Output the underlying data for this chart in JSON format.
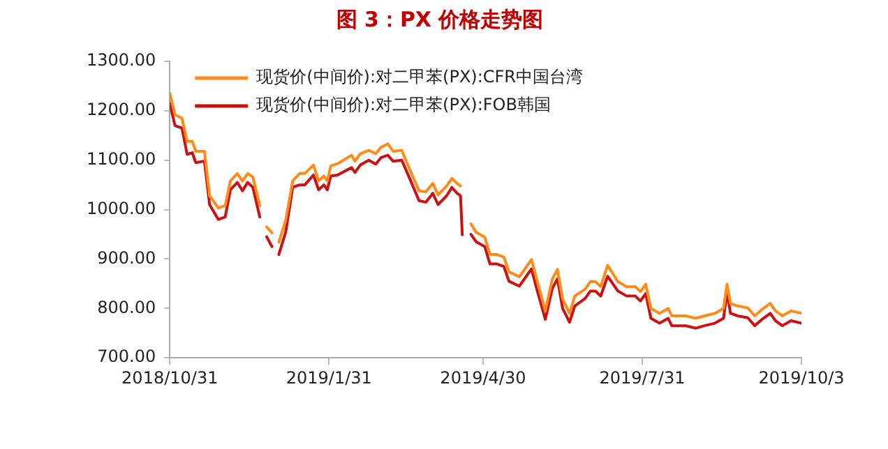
{
  "chart_data": {
    "type": "line",
    "title": "图 3：PX 价格走势图",
    "x": [
      "2018-10-31",
      "2018-11-03",
      "2018-11-07",
      "2018-11-10",
      "2018-11-13",
      "2018-11-15",
      "2018-11-20",
      "2018-11-23",
      "2018-11-28",
      "2018-12-02",
      "2018-12-05",
      "2018-12-09",
      "2018-12-12",
      "2018-12-15",
      "2018-12-18",
      "2018-12-22",
      "2018-12-24",
      "2018-12-26",
      "2018-12-29",
      "2018-12-31",
      "2019-01-02",
      "2019-01-06",
      "2019-01-10",
      "2019-01-14",
      "2019-01-17",
      "2019-01-22",
      "2019-01-25",
      "2019-01-28",
      "2019-01-30",
      "2019-02-01",
      "2019-02-05",
      "2019-02-13",
      "2019-02-15",
      "2019-02-18",
      "2019-02-23",
      "2019-02-27",
      "2019-03-02",
      "2019-03-06",
      "2019-03-09",
      "2019-03-14",
      "2019-03-19",
      "2019-03-24",
      "2019-03-28",
      "2019-04-01",
      "2019-04-04",
      "2019-04-09",
      "2019-04-12",
      "2019-04-15",
      "2019-04-17",
      "2019-04-18",
      "2019-04-19",
      "2019-04-23",
      "2019-04-26",
      "2019-05-01",
      "2019-05-04",
      "2019-05-08",
      "2019-05-12",
      "2019-05-15",
      "2019-05-21",
      "2019-05-25",
      "2019-05-28",
      "2019-05-31",
      "2019-06-05",
      "2019-06-09",
      "2019-06-12",
      "2019-06-15",
      "2019-06-19",
      "2019-06-22",
      "2019-06-28",
      "2019-07-01",
      "2019-07-04",
      "2019-07-07",
      "2019-07-11",
      "2019-07-17",
      "2019-07-22",
      "2019-07-27",
      "2019-07-30",
      "2019-08-02",
      "2019-08-05",
      "2019-08-10",
      "2019-08-15",
      "2019-08-17",
      "2019-08-25",
      "2019-08-31",
      "2019-09-05",
      "2019-09-11",
      "2019-09-16",
      "2019-09-18",
      "2019-09-20",
      "2019-09-24",
      "2019-09-30",
      "2019-10-04",
      "2019-10-09",
      "2019-10-13",
      "2019-10-16",
      "2019-10-20",
      "2019-10-25",
      "2019-10-31"
    ],
    "series": [
      {
        "name": "现货价(中间价):对二甲苯(PX):CFR中国台湾",
        "color": "#ff8c1a",
        "values": [
          1235,
          1192,
          1185,
          1138,
          1138,
          1118,
          1118,
          1028,
          1003,
          1008,
          1058,
          1073,
          1058,
          1073,
          1066,
          1008,
          null,
          965,
          953,
          null,
          934,
          979,
          1058,
          1073,
          1073,
          1090,
          1058,
          1068,
          1058,
          1088,
          1093,
          1110,
          1098,
          1113,
          1120,
          1113,
          1126,
          1133,
          1118,
          1120,
          1078,
          1038,
          1036,
          1053,
          1030,
          1048,
          1063,
          1053,
          1048,
          null,
          null,
          971,
          954,
          944,
          909,
          909,
          904,
          874,
          864,
          884,
          899,
          859,
          795,
          859,
          879,
          819,
          790,
          825,
          839,
          854,
          854,
          844,
          887,
          854,
          844,
          844,
          834,
          849,
          800,
          790,
          800,
          785,
          785,
          780,
          785,
          790,
          800,
          849,
          810,
          805,
          801,
          785,
          800,
          810,
          795,
          785,
          795,
          790
        ]
      },
      {
        "name": "现货价(中间价):对二甲苯(PX):FOB韩国",
        "color": "#cc1111",
        "values": [
          1215,
          1170,
          1165,
          1112,
          1115,
          1095,
          1098,
          1010,
          980,
          985,
          1040,
          1055,
          1038,
          1055,
          1045,
          985,
          null,
          945,
          925,
          null,
          909,
          955,
          1045,
          1050,
          1050,
          1070,
          1040,
          1050,
          1040,
          1068,
          1070,
          1085,
          1075,
          1090,
          1100,
          1092,
          1105,
          1110,
          1098,
          1100,
          1060,
          1018,
          1015,
          1033,
          1010,
          1028,
          1045,
          1033,
          1028,
          949,
          null,
          950,
          935,
          925,
          890,
          890,
          885,
          855,
          845,
          865,
          880,
          840,
          778,
          840,
          860,
          800,
          772,
          805,
          820,
          835,
          835,
          825,
          865,
          835,
          825,
          825,
          815,
          830,
          780,
          770,
          780,
          765,
          765,
          760,
          765,
          770,
          780,
          834,
          790,
          785,
          781,
          765,
          780,
          790,
          775,
          765,
          775,
          770
        ]
      }
    ],
    "xlim": [
      "2018-10-31",
      "2019-10-31"
    ],
    "xticks": [
      {
        "value": "2018-10-31",
        "label": "2018/10/31"
      },
      {
        "value": "2019-01-31",
        "label": "2019/1/31"
      },
      {
        "value": "2019-04-30",
        "label": "2019/4/30"
      },
      {
        "value": "2019-07-31",
        "label": "2019/7/31"
      },
      {
        "value": "2019-10-31",
        "label": "2019/10/3"
      }
    ],
    "ylim": [
      700,
      1300
    ],
    "yticks": [
      {
        "value": 700,
        "label": "700.00"
      },
      {
        "value": 800,
        "label": "800.00"
      },
      {
        "value": 900,
        "label": "900.00"
      },
      {
        "value": 1000,
        "label": "1000.00"
      },
      {
        "value": 1100,
        "label": "1100.00"
      },
      {
        "value": 1200,
        "label": "1200.00"
      },
      {
        "value": 1300,
        "label": "1300.00"
      }
    ],
    "grid": false,
    "legend": "top left",
    "marker": "none",
    "line_style": "solid"
  }
}
